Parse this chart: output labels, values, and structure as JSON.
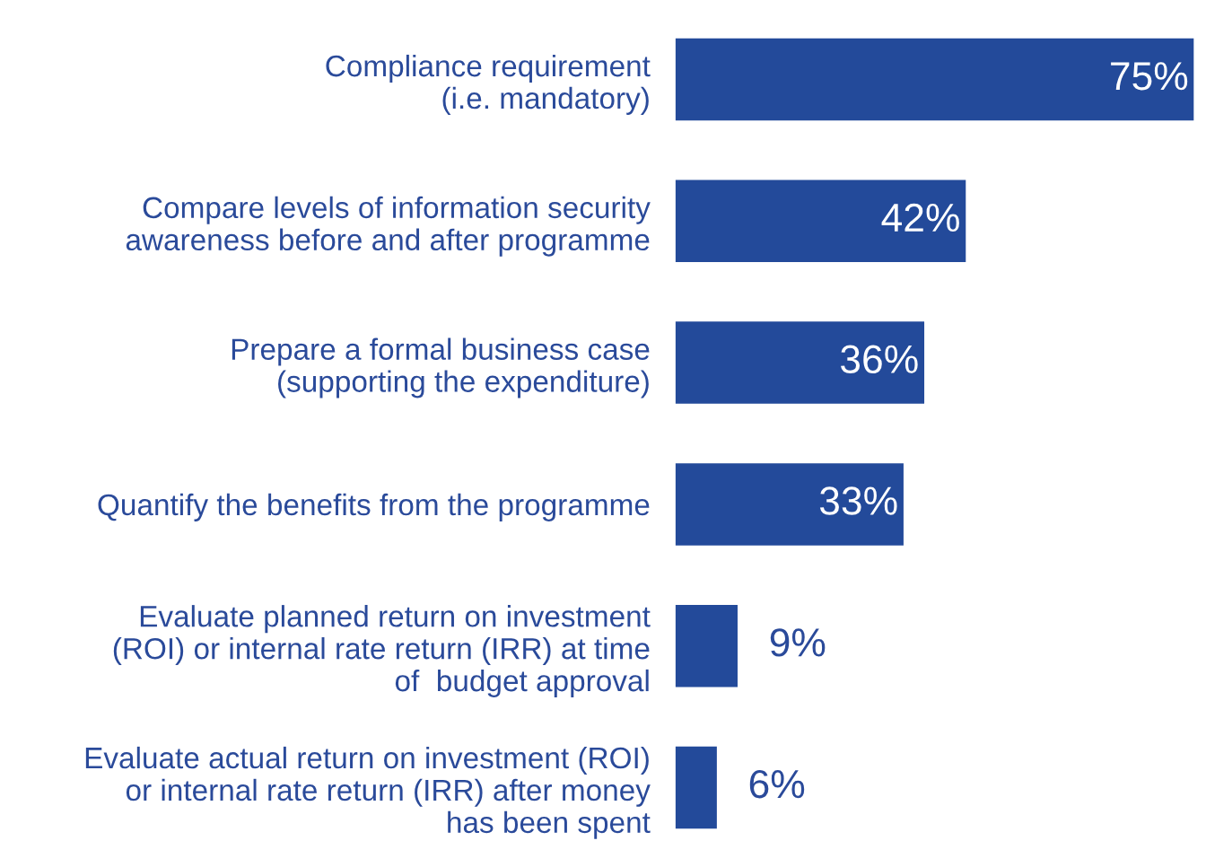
{
  "chart_data": {
    "type": "bar",
    "orientation": "horizontal",
    "categories": [
      "Compliance requirement\n(i.e. mandatory)",
      "Compare levels of information security\nawareness before and after programme",
      "Prepare a formal business case\n(supporting the expenditure)",
      "Quantify the benefits from the programme",
      "Evaluate planned return on investment\n(ROI) or internal rate return (IRR) at time\nof  budget approval",
      "Evaluate actual return on investment (ROI)\nor internal rate return (IRR) after money\nhas been spent"
    ],
    "values": [
      75,
      42,
      36,
      33,
      9,
      6
    ],
    "value_labels": [
      "75%",
      "42%",
      "36%",
      "33%",
      "9%",
      "6%"
    ],
    "color": "#234a9a",
    "grid": false,
    "legend": false
  }
}
